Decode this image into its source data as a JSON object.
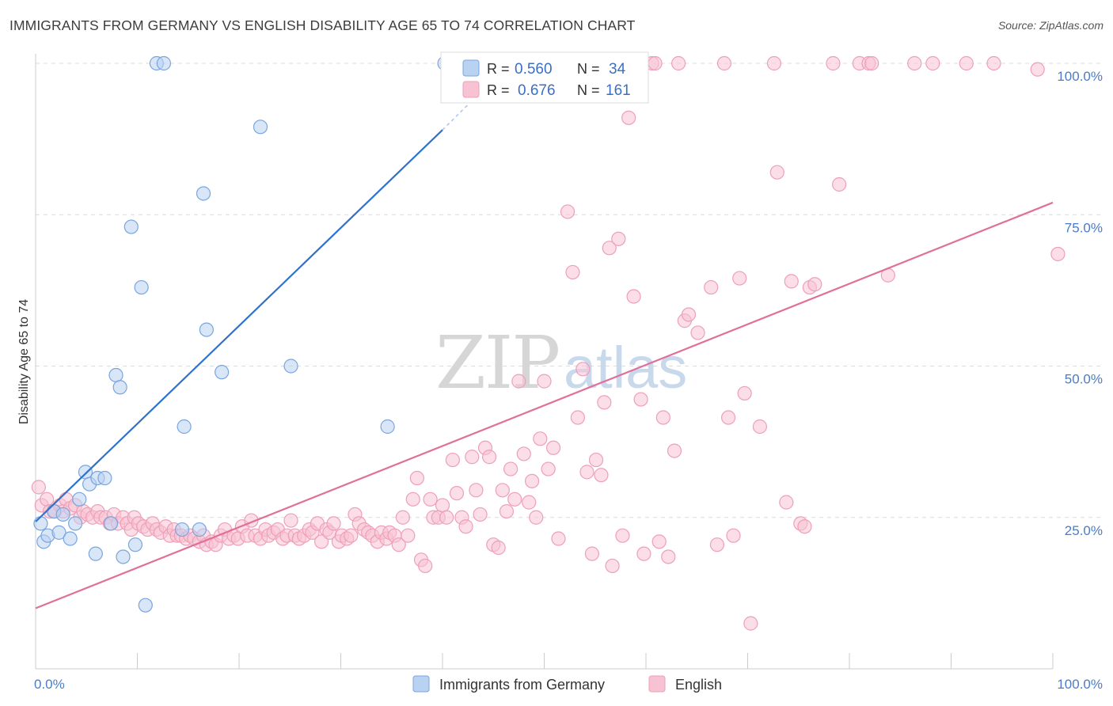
{
  "title": "IMMIGRANTS FROM GERMANY VS ENGLISH DISABILITY AGE 65 TO 74 CORRELATION CHART",
  "source": "Source: ZipAtlas.com",
  "watermark": {
    "zip": "ZIP",
    "atlas": "atlas"
  },
  "colors": {
    "blue": "#4a7cc9",
    "blue_fill": "#b9d2f2",
    "blue_stroke": "#7aa5de",
    "blue_line": "#2f72cc",
    "pink": "#e0709a",
    "pink_fill": "#f7c3d3",
    "pink_stroke": "#ee9fb9",
    "pink_line": "#e0709a",
    "grid": "#dcdcdc"
  },
  "chart_data": {
    "type": "scatter",
    "title": "IMMIGRANTS FROM GERMANY VS ENGLISH DISABILITY AGE 65 TO 74 CORRELATION CHART",
    "xlabel": "",
    "ylabel": "Disability Age 65 to 74",
    "xlim": [
      0,
      100
    ],
    "ylim": [
      0,
      105
    ],
    "x_tick_labels": [
      "0.0%",
      "100.0%"
    ],
    "y_ticks": [
      25,
      50,
      75,
      100
    ],
    "y_tick_labels": [
      "25.0%",
      "50.0%",
      "75.0%",
      "100.0%"
    ],
    "grid": true,
    "legend_position": "top-center",
    "series": [
      {
        "name": "Immigrants from Germany",
        "color": "#b9d2f2",
        "R": "0.560",
        "N": "34",
        "trend": {
          "x": [
            0,
            40
          ],
          "y": [
            24.3,
            89.0
          ]
        },
        "trend_dashed": {
          "x": [
            40,
            43
          ],
          "y": [
            89.0,
            94.0
          ]
        },
        "points": [
          [
            0.5,
            24
          ],
          [
            0.8,
            21
          ],
          [
            1.2,
            22
          ],
          [
            1.8,
            26
          ],
          [
            2.3,
            22.5
          ],
          [
            2.7,
            25.5
          ],
          [
            3.4,
            21.5
          ],
          [
            3.9,
            24
          ],
          [
            4.3,
            28
          ],
          [
            4.9,
            32.5
          ],
          [
            5.3,
            30.5
          ],
          [
            5.9,
            19
          ],
          [
            6.1,
            31.5
          ],
          [
            6.8,
            31.5
          ],
          [
            7.4,
            24
          ],
          [
            7.9,
            48.5
          ],
          [
            8.3,
            46.5
          ],
          [
            8.6,
            18.5
          ],
          [
            9.4,
            73
          ],
          [
            9.8,
            20.5
          ],
          [
            10.4,
            63
          ],
          [
            10.8,
            10.5
          ],
          [
            11.9,
            100
          ],
          [
            12.6,
            100
          ],
          [
            14.4,
            23
          ],
          [
            14.6,
            40
          ],
          [
            16.1,
            23
          ],
          [
            16.5,
            78.5
          ],
          [
            16.8,
            56
          ],
          [
            18.3,
            49
          ],
          [
            22.1,
            89.5
          ],
          [
            25.1,
            50
          ],
          [
            34.6,
            40
          ],
          [
            40.2,
            100
          ]
        ]
      },
      {
        "name": "English",
        "color": "#f7c3d3",
        "R": "0.676",
        "N": "161",
        "trend": {
          "x": [
            0,
            100
          ],
          "y": [
            10.0,
            77.0
          ]
        },
        "points": [
          [
            0.3,
            30
          ],
          [
            0.6,
            27
          ],
          [
            1.1,
            28
          ],
          [
            1.4,
            26
          ],
          [
            1.9,
            26
          ],
          [
            2.4,
            27
          ],
          [
            2.7,
            26
          ],
          [
            3.0,
            28
          ],
          [
            3.4,
            26.5
          ],
          [
            3.9,
            27
          ],
          [
            4.4,
            25
          ],
          [
            4.7,
            26
          ],
          [
            5.1,
            25.5
          ],
          [
            5.6,
            25
          ],
          [
            6.1,
            26
          ],
          [
            6.4,
            25
          ],
          [
            6.9,
            25
          ],
          [
            7.3,
            24
          ],
          [
            7.7,
            25.5
          ],
          [
            8.1,
            24
          ],
          [
            8.6,
            25
          ],
          [
            9.0,
            24
          ],
          [
            9.4,
            23
          ],
          [
            9.7,
            25
          ],
          [
            10.1,
            24
          ],
          [
            10.6,
            23.5
          ],
          [
            11.0,
            23
          ],
          [
            11.5,
            24
          ],
          [
            11.9,
            23
          ],
          [
            12.3,
            22.5
          ],
          [
            12.8,
            23.5
          ],
          [
            13.2,
            22
          ],
          [
            13.6,
            23
          ],
          [
            13.9,
            22
          ],
          [
            14.3,
            22
          ],
          [
            14.8,
            21.5
          ],
          [
            15.2,
            22
          ],
          [
            15.6,
            21.5
          ],
          [
            16.1,
            21
          ],
          [
            16.5,
            22
          ],
          [
            16.8,
            20.5
          ],
          [
            17.3,
            21
          ],
          [
            17.7,
            20.5
          ],
          [
            18.2,
            22
          ],
          [
            18.6,
            23
          ],
          [
            19.0,
            21.5
          ],
          [
            19.5,
            22
          ],
          [
            19.9,
            21.5
          ],
          [
            20.3,
            23.5
          ],
          [
            20.8,
            22
          ],
          [
            21.2,
            24.5
          ],
          [
            21.6,
            22
          ],
          [
            22.1,
            21.5
          ],
          [
            22.6,
            23
          ],
          [
            22.9,
            22
          ],
          [
            23.4,
            22.5
          ],
          [
            23.8,
            23
          ],
          [
            24.3,
            21.5
          ],
          [
            24.7,
            22
          ],
          [
            25.1,
            24.5
          ],
          [
            25.5,
            22
          ],
          [
            25.9,
            21.5
          ],
          [
            26.4,
            22
          ],
          [
            26.9,
            23
          ],
          [
            27.2,
            22.5
          ],
          [
            27.7,
            24
          ],
          [
            28.1,
            21
          ],
          [
            28.6,
            23
          ],
          [
            28.9,
            22.5
          ],
          [
            29.3,
            24
          ],
          [
            29.8,
            21
          ],
          [
            30.1,
            22
          ],
          [
            30.6,
            21.5
          ],
          [
            31.0,
            22
          ],
          [
            31.4,
            25.5
          ],
          [
            31.8,
            24
          ],
          [
            32.3,
            23
          ],
          [
            32.7,
            22.5
          ],
          [
            33.1,
            22
          ],
          [
            33.6,
            21
          ],
          [
            34.0,
            22.5
          ],
          [
            34.5,
            21.5
          ],
          [
            34.8,
            22.5
          ],
          [
            35.3,
            22
          ],
          [
            35.7,
            20.5
          ],
          [
            36.1,
            25
          ],
          [
            36.6,
            22
          ],
          [
            37.1,
            28
          ],
          [
            37.5,
            31.5
          ],
          [
            37.9,
            18
          ],
          [
            38.3,
            17
          ],
          [
            38.8,
            28
          ],
          [
            39.1,
            25
          ],
          [
            39.6,
            25
          ],
          [
            40.0,
            27
          ],
          [
            40.4,
            25
          ],
          [
            41.0,
            34.5
          ],
          [
            41.4,
            29
          ],
          [
            41.9,
            25
          ],
          [
            42.3,
            23.5
          ],
          [
            42.9,
            35
          ],
          [
            43.3,
            29.5
          ],
          [
            43.7,
            25.5
          ],
          [
            44.2,
            36.5
          ],
          [
            44.6,
            35
          ],
          [
            45.0,
            20.5
          ],
          [
            45.5,
            20
          ],
          [
            45.9,
            29.5
          ],
          [
            46.3,
            26
          ],
          [
            46.7,
            33
          ],
          [
            47.1,
            28
          ],
          [
            47.5,
            47.5
          ],
          [
            48.0,
            35.5
          ],
          [
            48.5,
            27.5
          ],
          [
            48.8,
            31
          ],
          [
            49.2,
            25
          ],
          [
            49.6,
            38
          ],
          [
            50.0,
            47.5
          ],
          [
            50.4,
            33
          ],
          [
            50.9,
            36.5
          ],
          [
            51.4,
            21.5
          ],
          [
            52.3,
            75.5
          ],
          [
            52.8,
            65.5
          ],
          [
            53.3,
            41.5
          ],
          [
            53.8,
            49.5
          ],
          [
            54.2,
            32.5
          ],
          [
            54.7,
            19
          ],
          [
            55.1,
            34.5
          ],
          [
            55.6,
            32
          ],
          [
            55.9,
            44
          ],
          [
            56.4,
            69.5
          ],
          [
            56.7,
            17
          ],
          [
            57.3,
            71
          ],
          [
            57.7,
            22
          ],
          [
            58.3,
            91
          ],
          [
            58.8,
            61.5
          ],
          [
            59.5,
            44.5
          ],
          [
            59.8,
            19
          ],
          [
            60.6,
            100
          ],
          [
            60.9,
            100
          ],
          [
            61.3,
            21
          ],
          [
            61.7,
            41.5
          ],
          [
            62.2,
            18.5
          ],
          [
            62.8,
            36
          ],
          [
            63.2,
            100
          ],
          [
            63.8,
            57.5
          ],
          [
            64.2,
            58.5
          ],
          [
            65.1,
            55.5
          ],
          [
            66.4,
            63
          ],
          [
            67.0,
            20.5
          ],
          [
            67.7,
            100
          ],
          [
            68.1,
            41.5
          ],
          [
            68.6,
            22
          ],
          [
            69.2,
            64.5
          ],
          [
            69.7,
            45.5
          ],
          [
            70.3,
            7.5
          ],
          [
            71.2,
            40
          ],
          [
            72.6,
            100
          ],
          [
            72.9,
            82
          ],
          [
            73.8,
            27.5
          ],
          [
            74.3,
            64
          ],
          [
            75.2,
            24
          ],
          [
            75.6,
            23.5
          ],
          [
            76.1,
            63
          ],
          [
            76.6,
            63.5
          ],
          [
            78.4,
            100
          ],
          [
            79.0,
            80
          ],
          [
            81.0,
            100
          ],
          [
            81.9,
            100
          ],
          [
            82.2,
            100
          ],
          [
            83.8,
            65
          ],
          [
            86.4,
            100
          ],
          [
            88.2,
            100
          ],
          [
            91.5,
            100
          ],
          [
            94.2,
            100
          ],
          [
            98.5,
            99
          ],
          [
            100.5,
            68.5
          ]
        ]
      }
    ]
  }
}
